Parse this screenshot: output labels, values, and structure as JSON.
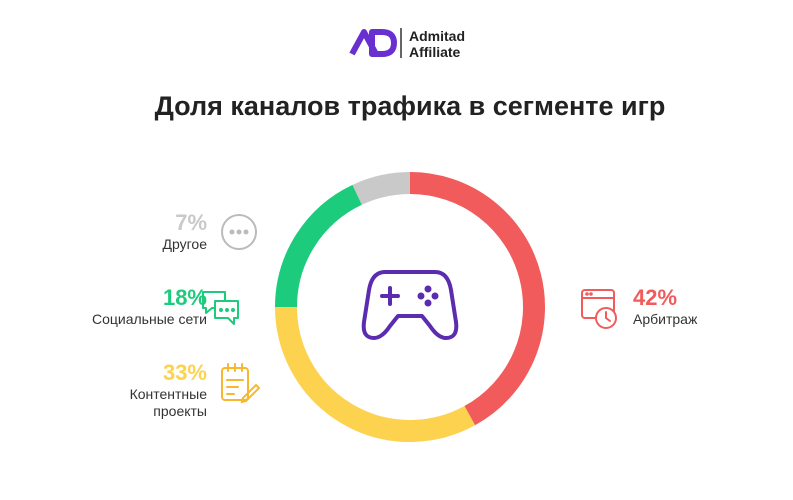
{
  "logo": {
    "line1": "Admitad",
    "line2": "Affiliate"
  },
  "chart_data": {
    "type": "pie",
    "donut": true,
    "title": "Доля каналов трафика в сегменте игр",
    "categories": [
      "Арбитраж",
      "Контентные проекты",
      "Социальные сети",
      "Другое"
    ],
    "values": [
      42,
      33,
      18,
      7
    ],
    "value_labels": [
      "42%",
      "33%",
      "18%",
      "7%"
    ],
    "colors": [
      "#f25b5b",
      "#fcd24f",
      "#1dcb7c",
      "#c9c9c9"
    ]
  }
}
